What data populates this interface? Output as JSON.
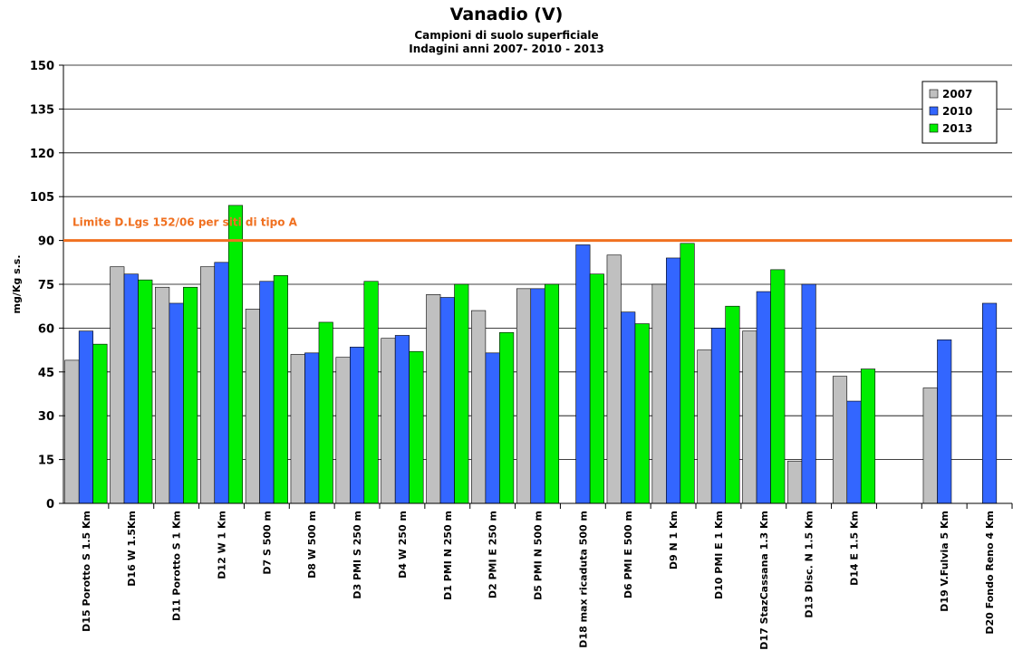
{
  "chart_data": {
    "type": "bar",
    "title": "Vanadio (V)",
    "subtitle": [
      "Campioni di suolo superficiale",
      "Indagini anni 2007- 2010 - 2013"
    ],
    "ylabel": "mg/Kg s.s.",
    "categories": [
      "D15 Porotto S 1.5 Km",
      "D16 W 1.5Km",
      "D11 Porotto S 1 Km",
      "D12 W 1 Km",
      "D7 S 500 m",
      "D8 W 500 m",
      "D3 PMI S 250 m",
      "D4 W 250 m",
      "D1 PMI N 250 m",
      "D2 PMI E 250 m",
      "D5 PMI N 500 m",
      "D18 max ricaduta 500 m",
      "D6 PMI E 500 m",
      "D9 N 1 Km",
      "D10 PMI E 1 Km",
      "D17 StazCassana 1.3 Km",
      "D13 Disc. N 1.5 Km",
      "D14 E 1.5 Km",
      null,
      "D19 V.Fulvia 5 Km",
      "D20 Fondo Reno 4 Km"
    ],
    "series": [
      {
        "name": "2007",
        "color": "#c0c0c0",
        "values": [
          49,
          81,
          74,
          81,
          66.5,
          51,
          50,
          56.5,
          71.5,
          66,
          73.5,
          null,
          85,
          75,
          52.5,
          59,
          14.5,
          43.5,
          null,
          39.5,
          null
        ]
      },
      {
        "name": "2010",
        "color": "#3366ff",
        "values": [
          59,
          78.5,
          68.5,
          82.5,
          76,
          51.5,
          53.5,
          57.5,
          70.5,
          51.5,
          73.5,
          88.5,
          65.5,
          84,
          60,
          72.5,
          75,
          35,
          null,
          56,
          68.5
        ]
      },
      {
        "name": "2013",
        "color": "#00ee00",
        "values": [
          54.5,
          76.5,
          74,
          102,
          78,
          62,
          76,
          52,
          75,
          58.5,
          75,
          78.5,
          61.5,
          89,
          67.5,
          80,
          null,
          46,
          null,
          null,
          null
        ]
      }
    ],
    "limit": {
      "value": 90,
      "label": "Limite D.Lgs 152/06 per siti di tipo A",
      "color": "#f07020"
    },
    "ylim": [
      0,
      150
    ],
    "yticks": [
      0,
      15,
      30,
      45,
      60,
      75,
      90,
      105,
      120,
      135,
      150
    ],
    "grid": true,
    "legend": "top-right"
  }
}
